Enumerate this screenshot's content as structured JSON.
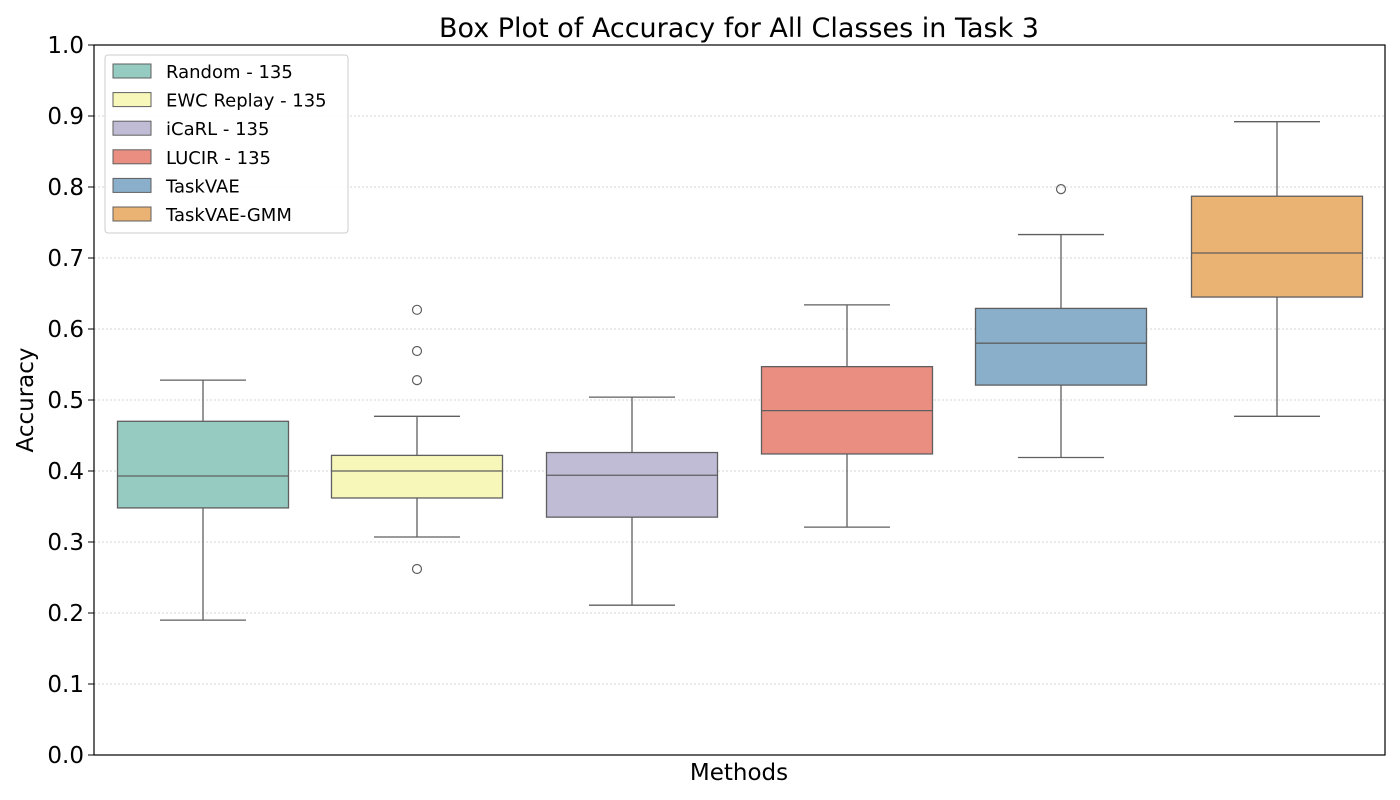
{
  "chart_data": {
    "type": "box",
    "title": "Box Plot of Accuracy for All Classes in Task 3",
    "xlabel": "Methods",
    "ylabel": "Accuracy",
    "ylim": [
      0.0,
      1.0
    ],
    "yticks": [
      "0.0",
      "0.1",
      "0.2",
      "0.3",
      "0.4",
      "0.5",
      "0.6",
      "0.7",
      "0.8",
      "0.9",
      "1.0"
    ],
    "grid": "horizontal dotted",
    "legend_position": "top-left",
    "series": [
      {
        "name": "Random - 135",
        "color": "#96cbc1",
        "whisker_low": 0.19,
        "q1": 0.348,
        "median": 0.393,
        "q3": 0.47,
        "whisker_high": 0.528,
        "outliers": []
      },
      {
        "name": "EWC Replay - 135",
        "color": "#f7f7b9",
        "whisker_low": 0.307,
        "q1": 0.362,
        "median": 0.4,
        "q3": 0.422,
        "whisker_high": 0.477,
        "outliers": [
          0.627,
          0.569,
          0.528,
          0.262
        ]
      },
      {
        "name": "iCaRL - 135",
        "color": "#c0bcd6",
        "whisker_low": 0.211,
        "q1": 0.335,
        "median": 0.394,
        "q3": 0.426,
        "whisker_high": 0.504,
        "outliers": []
      },
      {
        "name": "LUCIR - 135",
        "color": "#ea8e82",
        "whisker_low": 0.321,
        "q1": 0.424,
        "median": 0.485,
        "q3": 0.547,
        "whisker_high": 0.634,
        "outliers": []
      },
      {
        "name": "TaskVAE",
        "color": "#89afca",
        "whisker_low": 0.419,
        "q1": 0.521,
        "median": 0.58,
        "q3": 0.629,
        "whisker_high": 0.733,
        "outliers": [
          0.797
        ]
      },
      {
        "name": "TaskVAE-GMM",
        "color": "#ebb373",
        "whisker_low": 0.477,
        "q1": 0.645,
        "median": 0.707,
        "q3": 0.787,
        "whisker_high": 0.892,
        "outliers": []
      }
    ]
  }
}
